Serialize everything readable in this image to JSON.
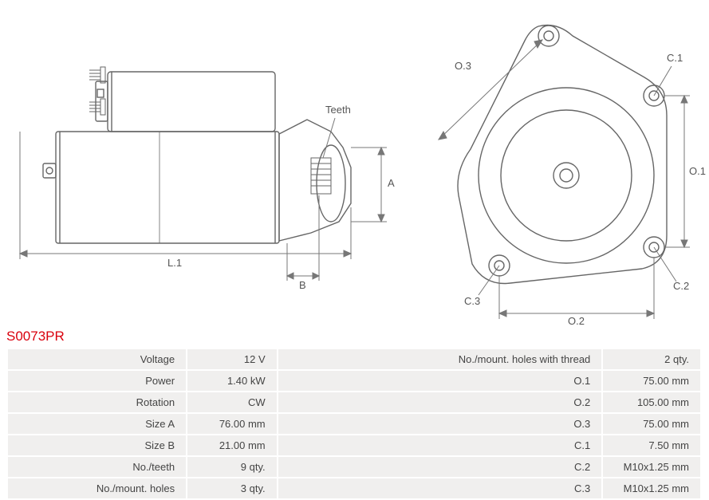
{
  "part": {
    "code": "S0073PR"
  },
  "colors": {
    "stroke": "#666666",
    "dimline": "#777777",
    "label_text": "#555555",
    "table_bg": "#f0efee",
    "table_text": "#444444",
    "accent": "#d9000d",
    "page_bg": "#ffffff"
  },
  "diagrams": {
    "side": {
      "labels": {
        "L1": "L.1",
        "B": "B",
        "A": "A",
        "Teeth": "Teeth"
      }
    },
    "front": {
      "labels": {
        "O1": "O.1",
        "O2": "O.2",
        "O3": "O.3",
        "C1": "C.1",
        "C2": "C.2",
        "C3": "C.3"
      }
    }
  },
  "specs": {
    "rows": [
      {
        "label_l": "Voltage",
        "value_l": "12 V",
        "label_r": "No./mount. holes with thread",
        "value_r": "2 qty."
      },
      {
        "label_l": "Power",
        "value_l": "1.40 kW",
        "label_r": "O.1",
        "value_r": "75.00 mm"
      },
      {
        "label_l": "Rotation",
        "value_l": "CW",
        "label_r": "O.2",
        "value_r": "105.00 mm"
      },
      {
        "label_l": "Size A",
        "value_l": "76.00 mm",
        "label_r": "O.3",
        "value_r": "75.00 mm"
      },
      {
        "label_l": "Size B",
        "value_l": "21.00 mm",
        "label_r": "C.1",
        "value_r": "7.50 mm"
      },
      {
        "label_l": "No./teeth",
        "value_l": "9 qty.",
        "label_r": "C.2",
        "value_r": "M10x1.25 mm"
      },
      {
        "label_l": "No./mount. holes",
        "value_l": "3 qty.",
        "label_r": "C.3",
        "value_r": "M10x1.25 mm"
      }
    ]
  }
}
